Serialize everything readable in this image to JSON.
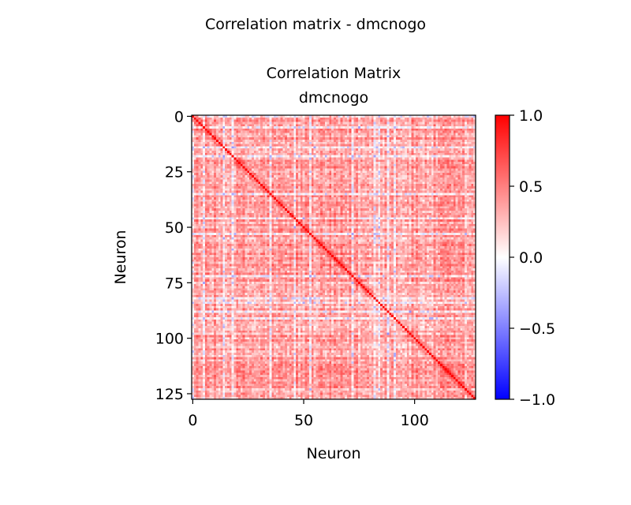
{
  "suptitle": "Correlation matrix - dmcnogo",
  "chart_data": {
    "type": "heatmap",
    "title_lines": [
      "Correlation Matrix",
      "dmcnogo"
    ],
    "xlabel": "Neuron",
    "ylabel": "Neuron",
    "n": 128,
    "x_ticks": [
      0,
      50,
      100
    ],
    "y_ticks": [
      0,
      25,
      50,
      75,
      100,
      125
    ],
    "colorbar": {
      "min": -1.0,
      "max": 1.0,
      "colormap": "bwr",
      "ticks": [
        1.0,
        0.5,
        0.0,
        -0.5,
        -1.0
      ],
      "tick_labels": [
        "1.0",
        "0.5",
        "0.0",
        "−0.5",
        "−1.0"
      ]
    },
    "diagonal_value": 1.0,
    "typical_offdiagonal_range": [
      -0.3,
      0.6
    ],
    "colors": {
      "low": "#0000ff",
      "mid": "#ffffff",
      "high": "#ff0000"
    }
  }
}
